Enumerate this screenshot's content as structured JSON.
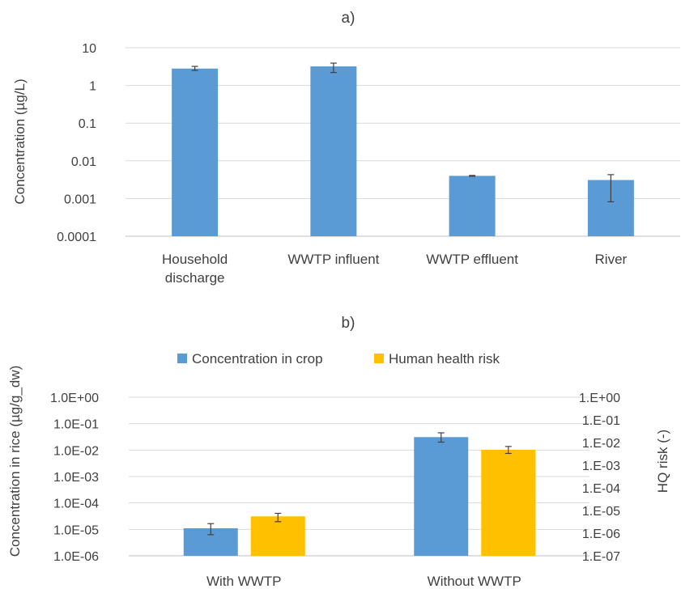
{
  "chart_data": [
    {
      "type": "bar",
      "title": "a)",
      "scale": "log10",
      "ylabel": "Concentration (µg/L)",
      "ylim": [
        0.0001,
        10
      ],
      "yticks": [
        "0.0001",
        "0.001",
        "0.01",
        "0.1",
        "1",
        "10"
      ],
      "categories": [
        [
          "Household",
          "discharge"
        ],
        [
          "WWTP influent"
        ],
        [
          "WWTP effluent"
        ],
        [
          "River"
        ]
      ],
      "series": [
        {
          "color": "#5B9BD5",
          "values": [
            2.8,
            3.2,
            0.004,
            0.0031
          ],
          "error_low": [
            2.5,
            2.2,
            0.0039,
            0.00082
          ],
          "error_high": [
            3.2,
            3.9,
            0.0041,
            0.0043
          ]
        }
      ],
      "grid": true,
      "legend": "none"
    },
    {
      "type": "bar",
      "title": "b)",
      "scale": "log10",
      "ylabel": "Concentration in rice (µg/g_dw)",
      "ylabel_right": "HQ risk (-)",
      "ylim": [
        1e-06,
        1
      ],
      "yticks": [
        "1.0E-06",
        "1.0E-05",
        "1.0E-04",
        "1.0E-03",
        "1.0E-02",
        "1.0E-01",
        "1.0E+00"
      ],
      "ylim_right": [
        1e-07,
        1
      ],
      "yticks_right": [
        "1.E-07",
        "1.E-06",
        "1.E-05",
        "1.E-04",
        "1.E-03",
        "1.E-02",
        "1.E-01",
        "1.E+00"
      ],
      "categories": [
        [
          "With WWTP"
        ],
        [
          "Without WWTP"
        ]
      ],
      "series": [
        {
          "name": "Concentration in crop",
          "color": "#5B9BD5",
          "axis": "left",
          "values": [
            1.1e-05,
            0.031
          ],
          "error_low": [
            6.3e-06,
            0.02
          ],
          "error_high": [
            1.65e-05,
            0.045
          ]
        },
        {
          "name": "Human health risk",
          "color": "#FFC000",
          "axis": "right",
          "values": [
            5.5e-06,
            0.0048
          ],
          "error_low": [
            3.2e-06,
            0.0033
          ],
          "error_high": [
            7.5e-06,
            0.0067
          ]
        }
      ],
      "grid": true,
      "legend": "top"
    }
  ]
}
